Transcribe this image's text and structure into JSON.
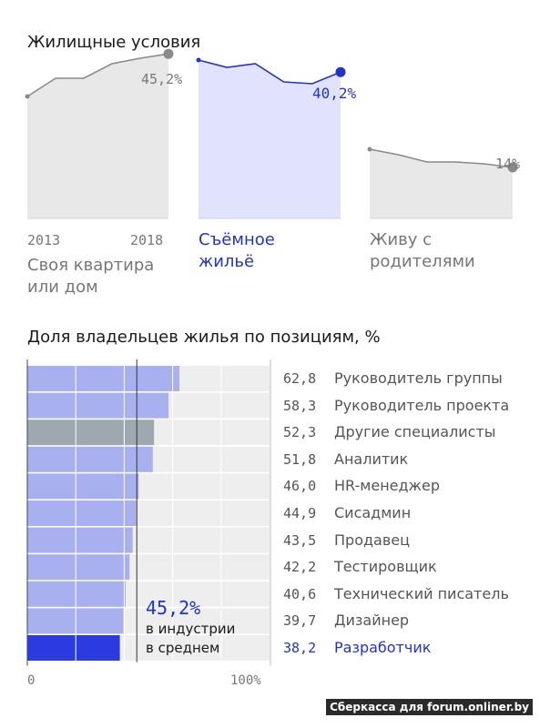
{
  "section1": {
    "title": "Жилищные условия",
    "years": [
      "2013",
      "2018"
    ]
  },
  "section2": {
    "title": "Доля владельцев жилья по позициям, %",
    "axis": {
      "min_label": "0",
      "max_label": "100%"
    },
    "average": {
      "value": "45,2%",
      "line1": "в индустрии",
      "line2": "в среднем"
    }
  },
  "watermark": "Сберкасса для forum.onliner.by",
  "colors": {
    "accent": "#2233cc",
    "light_blue_bar": "#a9b0f0",
    "gray_bar": "#9ea8b1",
    "highlight_bar": "#2b3bdf",
    "area_gray": "#e8e8e8",
    "area_blue": "#e0e3fb"
  },
  "chart_data": [
    {
      "type": "area",
      "title": "Жилищные условия",
      "x": [
        2013,
        2014,
        2015,
        2016,
        2017,
        2018
      ],
      "ylim": [
        0,
        60
      ],
      "series": [
        {
          "name": "Своя квартира или дом",
          "values": [
            33.5,
            38.5,
            38.5,
            42.5,
            44.0,
            45.2
          ],
          "end_label": "45,2%",
          "highlight": false
        },
        {
          "name": "Съёмное жильё",
          "values": [
            43.5,
            41.5,
            42.5,
            37.5,
            37.0,
            40.2
          ],
          "end_label": "40,2%",
          "highlight": true
        },
        {
          "name": "Живу с родителями",
          "values": [
            19.0,
            17.5,
            15.5,
            15.5,
            15.0,
            14.0
          ],
          "end_label": "14%",
          "highlight": false
        }
      ]
    },
    {
      "type": "bar",
      "orientation": "horizontal",
      "title": "Доля владельцев жилья по позициям, %",
      "xlim": [
        0,
        100
      ],
      "average": 45.2,
      "categories": [
        "Руководитель группы",
        "Руководитель проекта",
        "Другие специалисты",
        "Аналитик",
        "HR-менеджер",
        "Сисадмин",
        "Продавец",
        "Тестировщик",
        "Технический писатель",
        "Дизайнер",
        "Разработчик"
      ],
      "values": [
        62.8,
        58.3,
        52.3,
        51.8,
        46.0,
        44.9,
        43.5,
        42.2,
        40.6,
        39.7,
        38.2
      ],
      "value_labels": [
        "62,8",
        "58,3",
        "52,3",
        "51,8",
        "46,0",
        "44,9",
        "43,5",
        "42,2",
        "40,6",
        "39,7",
        "38,2"
      ],
      "bar_style": [
        "light",
        "light",
        "gray",
        "light",
        "light",
        "light",
        "light",
        "light",
        "light",
        "light",
        "highlight"
      ]
    }
  ]
}
